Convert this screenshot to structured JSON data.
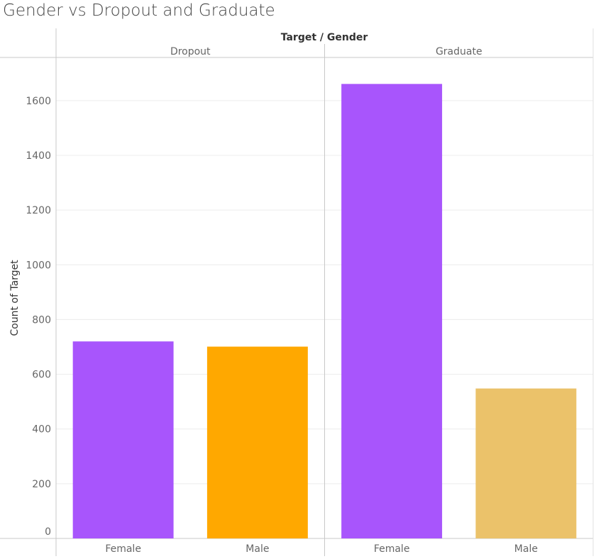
{
  "chart_data": {
    "type": "bar",
    "title": "Gender vs Dropout and Graduate",
    "header_title": "Target / Gender",
    "ylabel": "Count of Target",
    "ylim": [
      0,
      1750
    ],
    "yticks": [
      0,
      200,
      400,
      600,
      800,
      1000,
      1200,
      1400,
      1600
    ],
    "grid": true,
    "panels": [
      {
        "name": "Dropout",
        "categories": [
          "Female",
          "Male"
        ],
        "values": [
          720,
          701
        ],
        "colors": [
          "#a855fc",
          "#ffa800"
        ]
      },
      {
        "name": "Graduate",
        "categories": [
          "Female",
          "Male"
        ],
        "values": [
          1661,
          548
        ],
        "colors": [
          "#a855fc",
          "#ebc26a"
        ]
      }
    ]
  }
}
